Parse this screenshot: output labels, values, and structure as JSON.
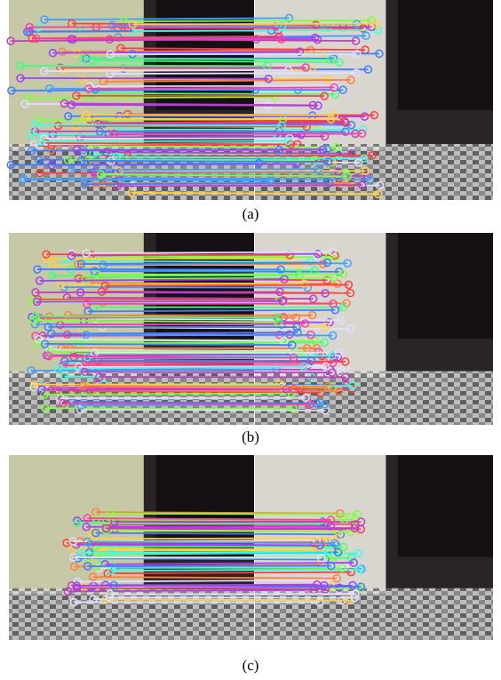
{
  "figure": {
    "panels": [
      {
        "caption": "(a)"
      },
      {
        "caption": "(b)"
      },
      {
        "caption": "(c)"
      }
    ]
  }
}
